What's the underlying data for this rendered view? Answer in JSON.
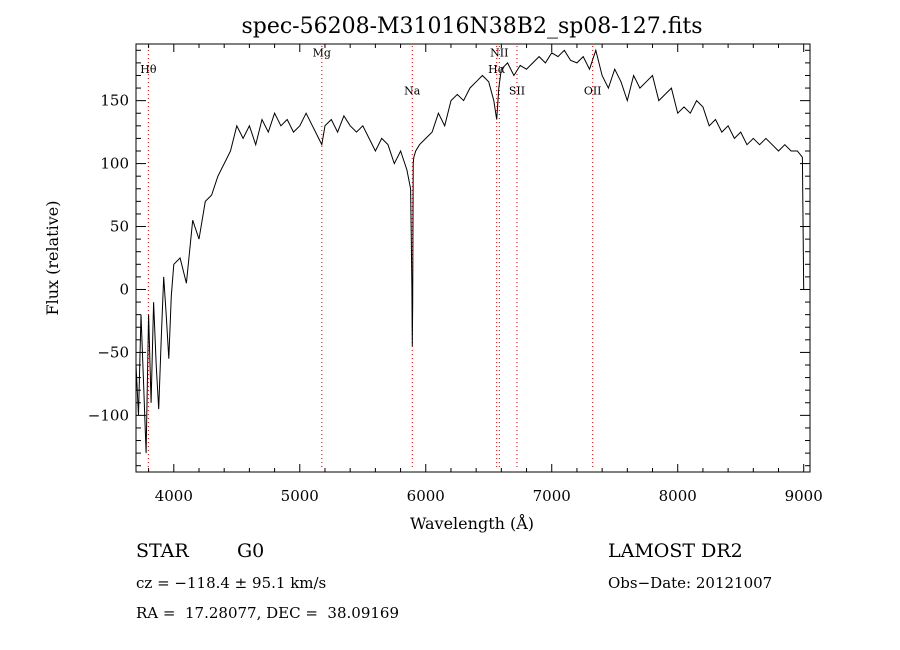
{
  "chart_data": {
    "type": "line",
    "title": "spec-56208-M31016N38B2_sp08-127.fits",
    "xlabel": "Wavelength (Å)",
    "ylabel": "Flux (relative)",
    "xlim": [
      3700,
      9050
    ],
    "ylim": [
      -145,
      195
    ],
    "xticks": [
      4000,
      5000,
      6000,
      7000,
      8000,
      9000
    ],
    "yticks": [
      -100,
      -50,
      0,
      50,
      100,
      150
    ],
    "xtick_labels": [
      "4000",
      "5000",
      "6000",
      "7000",
      "8000",
      "9000"
    ],
    "ytick_labels": [
      "−100",
      "−50",
      "0",
      "50",
      "100",
      "150"
    ],
    "series_color": "#000000",
    "line_marker_color": "#cc0000",
    "spectral_lines": [
      {
        "label": "Hθ",
        "wavelength": 3798,
        "label_y": 172
      },
      {
        "label": "Mg",
        "wavelength": 5175,
        "label_y": 185
      },
      {
        "label": "Na",
        "wavelength": 5893,
        "label_y": 155
      },
      {
        "label": "NII",
        "wavelength": 6584,
        "label_y": 185
      },
      {
        "label": "Hα",
        "wavelength": 6563,
        "label_y": 172
      },
      {
        "label": "SII",
        "wavelength": 6724,
        "label_y": 155
      },
      {
        "label": "OII",
        "wavelength": 7325,
        "label_y": 155
      }
    ],
    "series": [
      {
        "x": [
          3700,
          3720,
          3740,
          3760,
          3780,
          3800,
          3820,
          3840,
          3860,
          3880,
          3900,
          3920,
          3940,
          3960,
          3980,
          4000,
          4050,
          4100,
          4150,
          4200,
          4250,
          4300,
          4350,
          4400,
          4450,
          4500,
          4550,
          4600,
          4650,
          4700,
          4750,
          4800,
          4850,
          4900,
          4950,
          5000,
          5050,
          5100,
          5150,
          5175,
          5200,
          5250,
          5300,
          5350,
          5400,
          5450,
          5500,
          5550,
          5600,
          5650,
          5700,
          5750,
          5800,
          5850,
          5880,
          5885,
          5890,
          5893,
          5896,
          5900,
          5905,
          5920,
          5950,
          6000,
          6050,
          6100,
          6150,
          6200,
          6250,
          6300,
          6350,
          6400,
          6450,
          6500,
          6540,
          6563,
          6580,
          6600,
          6650,
          6700,
          6750,
          6800,
          6850,
          6900,
          6950,
          7000,
          7050,
          7100,
          7150,
          7200,
          7250,
          7300,
          7350,
          7400,
          7450,
          7500,
          7550,
          7600,
          7650,
          7700,
          7750,
          7800,
          7850,
          7900,
          7950,
          8000,
          8050,
          8100,
          8150,
          8200,
          8250,
          8300,
          8350,
          8400,
          8450,
          8500,
          8550,
          8600,
          8650,
          8700,
          8750,
          8800,
          8850,
          8900,
          8950,
          8990,
          9000
        ],
        "y": [
          -60,
          -100,
          -20,
          -75,
          -130,
          -20,
          -90,
          -10,
          -60,
          -95,
          -40,
          10,
          -20,
          -55,
          -5,
          20,
          25,
          5,
          55,
          40,
          70,
          75,
          90,
          100,
          110,
          130,
          120,
          130,
          115,
          135,
          125,
          140,
          130,
          135,
          125,
          130,
          140,
          130,
          120,
          115,
          130,
          135,
          125,
          138,
          130,
          125,
          130,
          120,
          110,
          120,
          115,
          100,
          110,
          95,
          80,
          40,
          0,
          -45,
          -10,
          100,
          105,
          110,
          115,
          120,
          125,
          140,
          130,
          150,
          155,
          150,
          160,
          165,
          170,
          165,
          150,
          135,
          160,
          175,
          180,
          170,
          178,
          175,
          180,
          185,
          180,
          188,
          185,
          190,
          182,
          180,
          185,
          175,
          190,
          170,
          160,
          175,
          165,
          150,
          170,
          160,
          165,
          170,
          150,
          155,
          160,
          140,
          145,
          140,
          150,
          145,
          130,
          135,
          125,
          130,
          120,
          125,
          115,
          120,
          115,
          120,
          115,
          110,
          115,
          110,
          110,
          105,
          0
        ]
      }
    ]
  },
  "info": {
    "object_class": "STAR",
    "subclass": "G0",
    "cz": "cz = −118.4 ± 95.1 km/s",
    "coords": "RA =  17.28077, DEC =  38.09169",
    "survey": "LAMOST DR2",
    "obs_date": "Obs−Date: 20121007"
  }
}
